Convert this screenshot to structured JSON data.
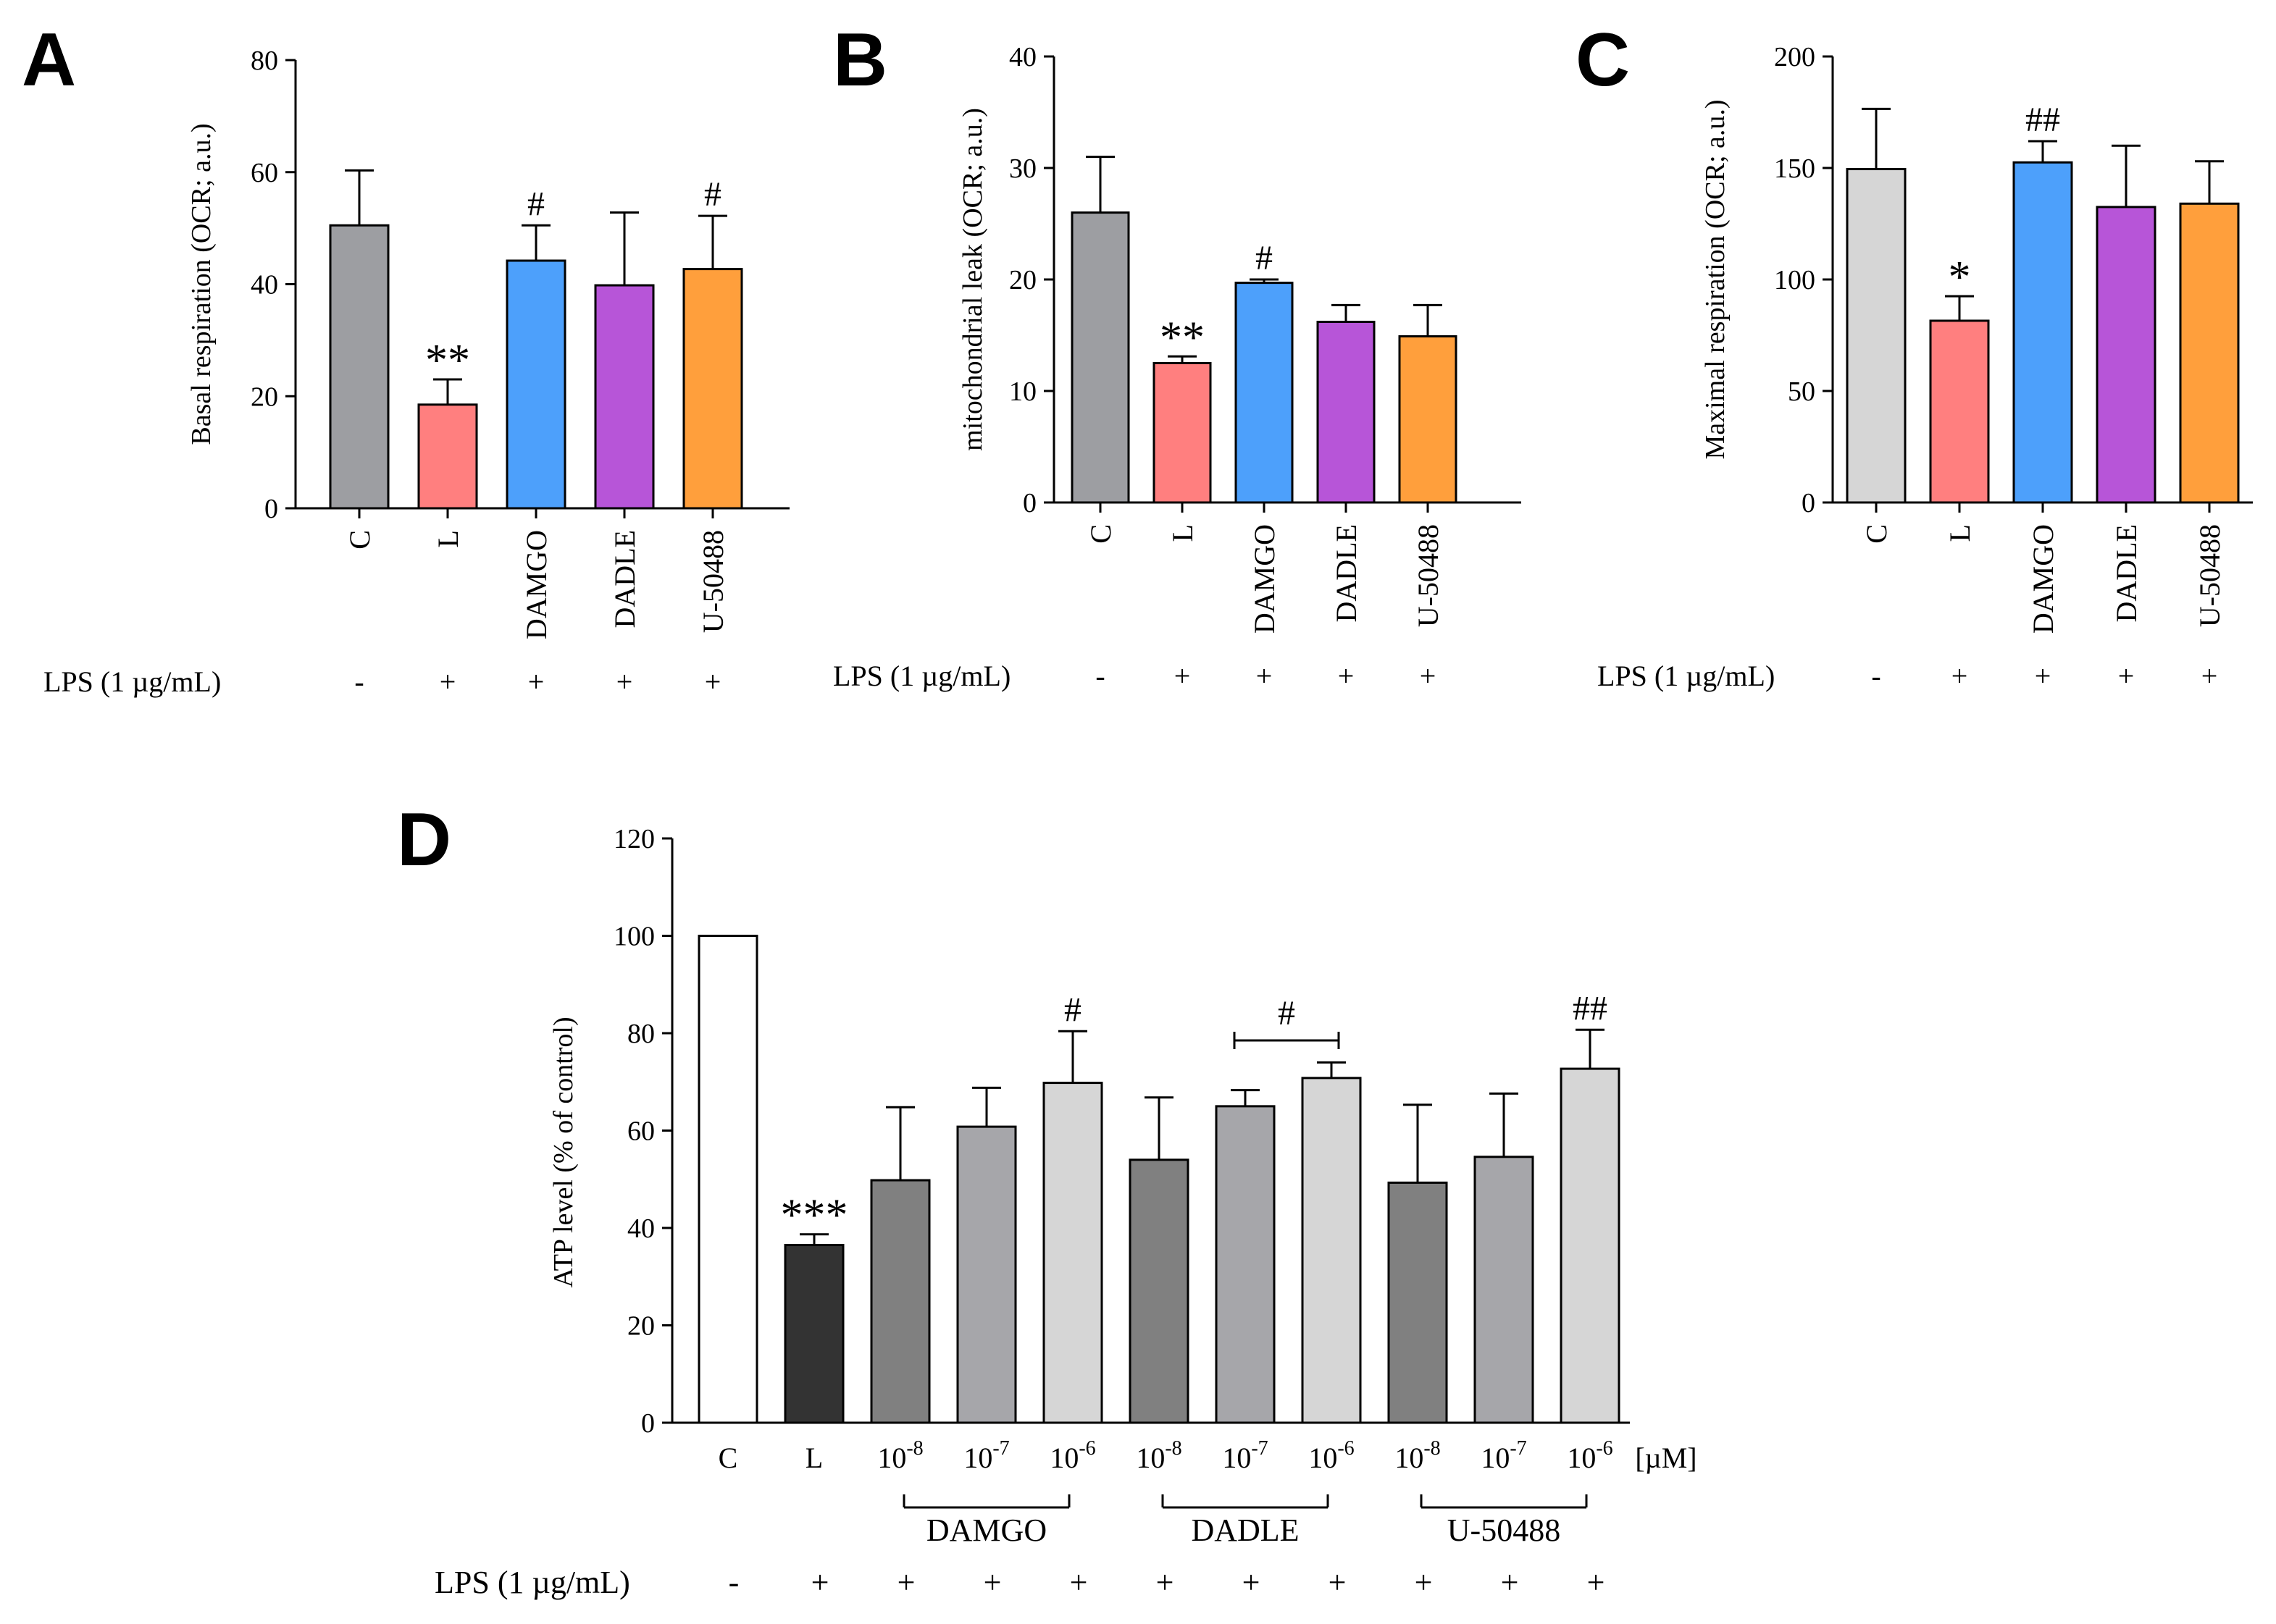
{
  "lps_label": "LPS (1 µg/mL)",
  "chart_data": [
    {
      "panel": "A",
      "type": "bar",
      "ylabel": "Basal respiration (OCR; a.u.)",
      "ylim": [
        0,
        80
      ],
      "yticks": [
        0,
        20,
        40,
        60,
        80
      ],
      "categories": [
        "C",
        "L",
        "DAMGO",
        "DADLE",
        "U-50488"
      ],
      "values": [
        50.5,
        18.5,
        44.2,
        39.8,
        42.7
      ],
      "errors": [
        9.8,
        4.5,
        6.3,
        13.0,
        9.5
      ],
      "colors": [
        "#9d9ea2",
        "#ff7f7f",
        "#4da0fb",
        "#b755d8",
        "#ff9f3c"
      ],
      "annotations": [
        "",
        "**",
        "#",
        "",
        "#"
      ],
      "lps": [
        "-",
        "+",
        "+",
        "+",
        "+"
      ]
    },
    {
      "panel": "B",
      "type": "bar",
      "ylabel": "mitochondrial leak (OCR; a.u.)",
      "ylim": [
        0,
        40
      ],
      "yticks": [
        0,
        10,
        20,
        30,
        40
      ],
      "categories": [
        "C",
        "L",
        "DAMGO",
        "DADLE",
        "U-50488"
      ],
      "values": [
        26.0,
        12.5,
        19.7,
        16.2,
        14.9
      ],
      "errors": [
        5.0,
        0.6,
        0.3,
        1.5,
        2.8
      ],
      "colors": [
        "#9d9ea2",
        "#ff7f7f",
        "#4da0fb",
        "#b755d8",
        "#ff9f3c"
      ],
      "annotations": [
        "",
        "**",
        "#",
        "",
        ""
      ],
      "lps": [
        "-",
        "+",
        "+",
        "+",
        "+"
      ]
    },
    {
      "panel": "C",
      "type": "bar",
      "ylabel": "Maximal respiration (OCR; a.u.)",
      "ylim": [
        0,
        200
      ],
      "yticks": [
        0,
        50,
        100,
        150,
        200
      ],
      "categories": [
        "C",
        "L",
        "DAMGO",
        "DADLE",
        "U-50488"
      ],
      "values": [
        149.5,
        81.5,
        152.5,
        132.5,
        134.0
      ],
      "errors": [
        27.0,
        11.0,
        9.5,
        27.5,
        19.0
      ],
      "colors": [
        "#d6d6d6",
        "#ff7f7f",
        "#4da0fb",
        "#b755d8",
        "#ff9f3c"
      ],
      "annotations": [
        "",
        "*",
        "##",
        "",
        ""
      ],
      "lps": [
        "-",
        "+",
        "+",
        "+",
        "+"
      ]
    },
    {
      "panel": "D",
      "type": "bar",
      "ylabel": "ATP level (% of control)",
      "ylim": [
        0,
        120
      ],
      "yticks": [
        0,
        20,
        40,
        60,
        80,
        100,
        120
      ],
      "categories": [
        "C",
        "L",
        "10-8",
        "10-7",
        "10-6",
        "10-8",
        "10-7",
        "10-6",
        "10-8",
        "10-7",
        "10-6"
      ],
      "tick_labels": [
        {
          "base": "C",
          "exp": ""
        },
        {
          "base": "L",
          "exp": ""
        },
        {
          "base": "10",
          "exp": "-8"
        },
        {
          "base": "10",
          "exp": "-7"
        },
        {
          "base": "10",
          "exp": "-6"
        },
        {
          "base": "10",
          "exp": "-8"
        },
        {
          "base": "10",
          "exp": "-7"
        },
        {
          "base": "10",
          "exp": "-6"
        },
        {
          "base": "10",
          "exp": "-8"
        },
        {
          "base": "10",
          "exp": "-7"
        },
        {
          "base": "10",
          "exp": "-6"
        }
      ],
      "unit_label": "[µM]",
      "values": [
        100,
        36.5,
        49.8,
        60.8,
        69.8,
        54.0,
        65.0,
        70.8,
        49.3,
        54.6,
        72.7
      ],
      "errors": [
        0,
        2.2,
        15.0,
        8.0,
        10.6,
        12.8,
        3.3,
        3.2,
        16.0,
        13.0,
        8.0
      ],
      "colors": [
        "#ffffff",
        "#333333",
        "#808080",
        "#a6a6aa",
        "#d6d6d6",
        "#808080",
        "#a6a6aa",
        "#d6d6d6",
        "#808080",
        "#a6a6aa",
        "#d6d6d6"
      ],
      "annotations": [
        "",
        "***",
        "",
        "",
        "#",
        "",
        "",
        "",
        "",
        "",
        "##"
      ],
      "bracket_annotation": {
        "label": "#",
        "from_index": 6,
        "to_index": 7
      },
      "groups": [
        {
          "label": "DAMGO",
          "from_index": 2,
          "to_index": 4
        },
        {
          "label": "DADLE",
          "from_index": 5,
          "to_index": 7
        },
        {
          "label": "U-50488",
          "from_index": 8,
          "to_index": 10
        }
      ],
      "lps": [
        "-",
        "+",
        "+",
        "+",
        "+",
        "+",
        "+",
        "+",
        "+",
        "+",
        "+"
      ]
    }
  ]
}
